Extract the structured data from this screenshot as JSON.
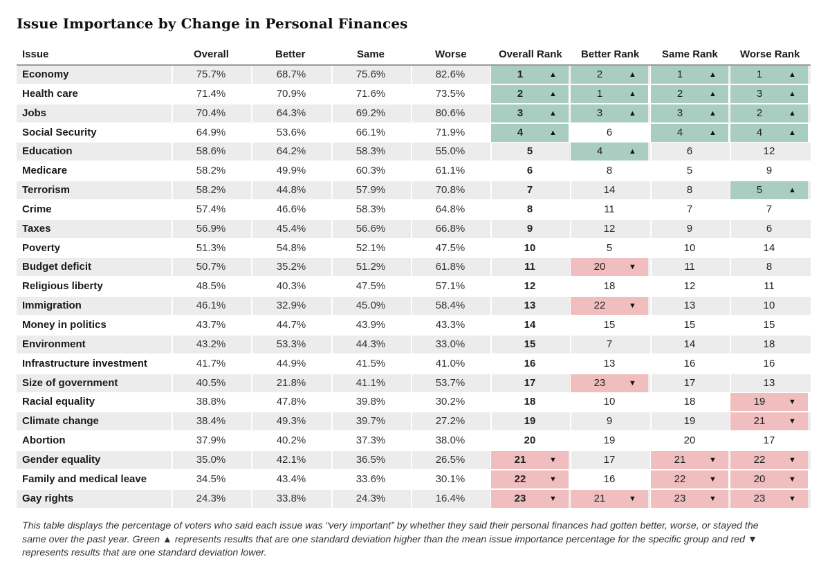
{
  "title": "Issue Importance by Change in Personal Finances",
  "headers": [
    "Issue",
    "Overall",
    "Better",
    "Same",
    "Worse",
    "Overall Rank",
    "Better Rank",
    "Same Rank",
    "Worse Rank"
  ],
  "footnote": "This table displays the percentage of voters who said each issue was “very important” by whether they said their personal finances had gotten better, worse, or stayed the same over the past year. Green ▲ represents results that are one standard deviation higher than the mean issue importance percentage for the specific group and red ▼ represents results that are one standard deviation lower.",
  "colors": {
    "high": "#a9cdc1",
    "low": "#f0bebe",
    "band": "#ececec"
  },
  "markers": {
    "high": "▲",
    "low": "▼"
  },
  "chart_data": {
    "type": "table",
    "title": "Issue Importance by Change in Personal Finances",
    "columns": [
      "Issue",
      "Overall",
      "Better",
      "Same",
      "Worse",
      "Overall Rank",
      "Better Rank",
      "Same Rank",
      "Worse Rank"
    ],
    "rows": [
      {
        "issue": "Economy",
        "overall": "75.7%",
        "better": "68.7%",
        "same": "75.6%",
        "worse": "82.6%",
        "ranks": [
          1,
          2,
          1,
          1
        ],
        "flags": [
          "hi",
          "hi",
          "hi",
          "hi"
        ]
      },
      {
        "issue": "Health care",
        "overall": "71.4%",
        "better": "70.9%",
        "same": "71.6%",
        "worse": "73.5%",
        "ranks": [
          2,
          1,
          2,
          3
        ],
        "flags": [
          "hi",
          "hi",
          "hi",
          "hi"
        ]
      },
      {
        "issue": "Jobs",
        "overall": "70.4%",
        "better": "64.3%",
        "same": "69.2%",
        "worse": "80.6%",
        "ranks": [
          3,
          3,
          3,
          2
        ],
        "flags": [
          "hi",
          "hi",
          "hi",
          "hi"
        ]
      },
      {
        "issue": "Social Security",
        "overall": "64.9%",
        "better": "53.6%",
        "same": "66.1%",
        "worse": "71.9%",
        "ranks": [
          4,
          6,
          4,
          4
        ],
        "flags": [
          "hi",
          "",
          "hi",
          "hi"
        ]
      },
      {
        "issue": "Education",
        "overall": "58.6%",
        "better": "64.2%",
        "same": "58.3%",
        "worse": "55.0%",
        "ranks": [
          5,
          4,
          6,
          12
        ],
        "flags": [
          "",
          "hi",
          "",
          ""
        ]
      },
      {
        "issue": "Medicare",
        "overall": "58.2%",
        "better": "49.9%",
        "same": "60.3%",
        "worse": "61.1%",
        "ranks": [
          6,
          8,
          5,
          9
        ],
        "flags": [
          "",
          "",
          "",
          ""
        ]
      },
      {
        "issue": "Terrorism",
        "overall": "58.2%",
        "better": "44.8%",
        "same": "57.9%",
        "worse": "70.8%",
        "ranks": [
          7,
          14,
          8,
          5
        ],
        "flags": [
          "",
          "",
          "",
          "hi"
        ]
      },
      {
        "issue": "Crime",
        "overall": "57.4%",
        "better": "46.6%",
        "same": "58.3%",
        "worse": "64.8%",
        "ranks": [
          8,
          11,
          7,
          7
        ],
        "flags": [
          "",
          "",
          "",
          ""
        ]
      },
      {
        "issue": "Taxes",
        "overall": "56.9%",
        "better": "45.4%",
        "same": "56.6%",
        "worse": "66.8%",
        "ranks": [
          9,
          12,
          9,
          6
        ],
        "flags": [
          "",
          "",
          "",
          ""
        ]
      },
      {
        "issue": "Poverty",
        "overall": "51.3%",
        "better": "54.8%",
        "same": "52.1%",
        "worse": "47.5%",
        "ranks": [
          10,
          5,
          10,
          14
        ],
        "flags": [
          "",
          "",
          "",
          ""
        ]
      },
      {
        "issue": "Budget deficit",
        "overall": "50.7%",
        "better": "35.2%",
        "same": "51.2%",
        "worse": "61.8%",
        "ranks": [
          11,
          20,
          11,
          8
        ],
        "flags": [
          "",
          "lo",
          "",
          ""
        ]
      },
      {
        "issue": "Religious liberty",
        "overall": "48.5%",
        "better": "40.3%",
        "same": "47.5%",
        "worse": "57.1%",
        "ranks": [
          12,
          18,
          12,
          11
        ],
        "flags": [
          "",
          "",
          "",
          ""
        ]
      },
      {
        "issue": "Immigration",
        "overall": "46.1%",
        "better": "32.9%",
        "same": "45.0%",
        "worse": "58.4%",
        "ranks": [
          13,
          22,
          13,
          10
        ],
        "flags": [
          "",
          "lo",
          "",
          ""
        ]
      },
      {
        "issue": "Money in politics",
        "overall": "43.7%",
        "better": "44.7%",
        "same": "43.9%",
        "worse": "43.3%",
        "ranks": [
          14,
          15,
          15,
          15
        ],
        "flags": [
          "",
          "",
          "",
          ""
        ]
      },
      {
        "issue": "Environment",
        "overall": "43.2%",
        "better": "53.3%",
        "same": "44.3%",
        "worse": "33.0%",
        "ranks": [
          15,
          7,
          14,
          18
        ],
        "flags": [
          "",
          "",
          "",
          ""
        ]
      },
      {
        "issue": "Infrastructure investment",
        "overall": "41.7%",
        "better": "44.9%",
        "same": "41.5%",
        "worse": "41.0%",
        "ranks": [
          16,
          13,
          16,
          16
        ],
        "flags": [
          "",
          "",
          "",
          ""
        ]
      },
      {
        "issue": "Size of government",
        "overall": "40.5%",
        "better": "21.8%",
        "same": "41.1%",
        "worse": "53.7%",
        "ranks": [
          17,
          23,
          17,
          13
        ],
        "flags": [
          "",
          "lo",
          "",
          ""
        ]
      },
      {
        "issue": "Racial equality",
        "overall": "38.8%",
        "better": "47.8%",
        "same": "39.8%",
        "worse": "30.2%",
        "ranks": [
          18,
          10,
          18,
          19
        ],
        "flags": [
          "",
          "",
          "",
          "lo"
        ]
      },
      {
        "issue": "Climate change",
        "overall": "38.4%",
        "better": "49.3%",
        "same": "39.7%",
        "worse": "27.2%",
        "ranks": [
          19,
          9,
          19,
          21
        ],
        "flags": [
          "",
          "",
          "",
          "lo"
        ]
      },
      {
        "issue": "Abortion",
        "overall": "37.9%",
        "better": "40.2%",
        "same": "37.3%",
        "worse": "38.0%",
        "ranks": [
          20,
          19,
          20,
          17
        ],
        "flags": [
          "",
          "",
          "",
          ""
        ]
      },
      {
        "issue": "Gender equality",
        "overall": "35.0%",
        "better": "42.1%",
        "same": "36.5%",
        "worse": "26.5%",
        "ranks": [
          21,
          17,
          21,
          22
        ],
        "flags": [
          "lo",
          "",
          "lo",
          "lo"
        ]
      },
      {
        "issue": "Family and medical leave",
        "overall": "34.5%",
        "better": "43.4%",
        "same": "33.6%",
        "worse": "30.1%",
        "ranks": [
          22,
          16,
          22,
          20
        ],
        "flags": [
          "lo",
          "",
          "lo",
          "lo"
        ]
      },
      {
        "issue": "Gay rights",
        "overall": "24.3%",
        "better": "33.8%",
        "same": "24.3%",
        "worse": "16.4%",
        "ranks": [
          23,
          21,
          23,
          23
        ],
        "flags": [
          "lo",
          "lo",
          "lo",
          "lo"
        ]
      }
    ]
  }
}
